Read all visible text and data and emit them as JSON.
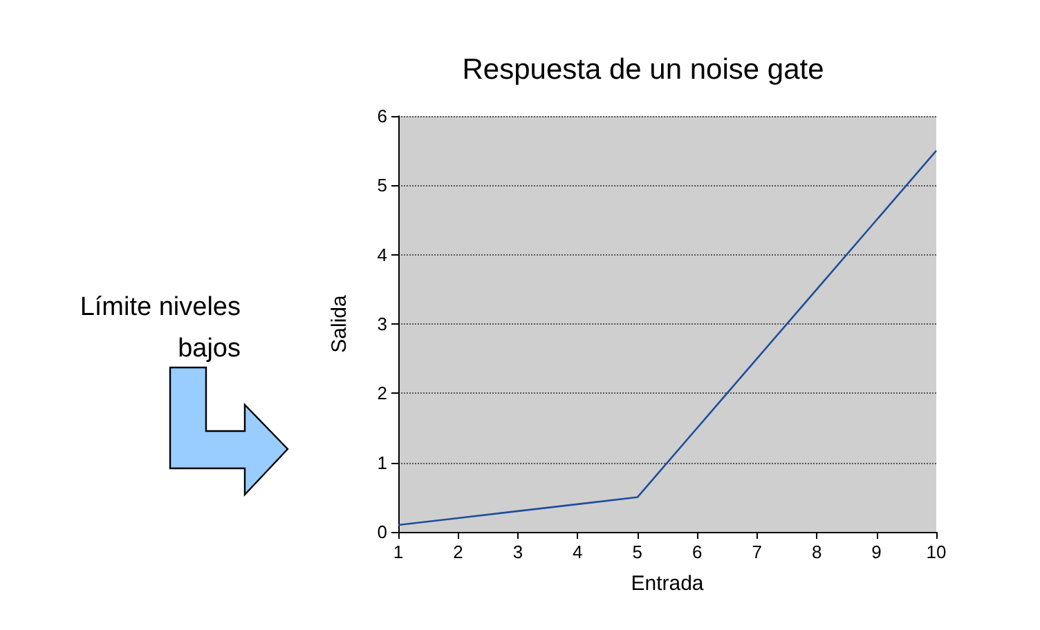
{
  "chart_data": {
    "type": "line",
    "title": "Respuesta de un noise gate",
    "xlabel": "Entrada",
    "ylabel": "Salida",
    "x": [
      1,
      2,
      3,
      4,
      5,
      6,
      7,
      8,
      9,
      10
    ],
    "series": [
      {
        "color": "#1f4e9a",
        "values": [
          0.1,
          0.2,
          0.3,
          0.4,
          0.5,
          1.5,
          2.5,
          3.5,
          4.5,
          5.5
        ]
      }
    ],
    "xlim": [
      1,
      10
    ],
    "xticks": [
      1,
      2,
      3,
      4,
      5,
      6,
      7,
      8,
      9,
      10
    ],
    "ylim": [
      0,
      6
    ],
    "yticks": [
      0,
      1,
      2,
      3,
      4,
      5,
      6
    ],
    "grid": "y",
    "marker": "none",
    "line_style": "solid",
    "annotations": [
      "Límite niveles bajos"
    ]
  }
}
